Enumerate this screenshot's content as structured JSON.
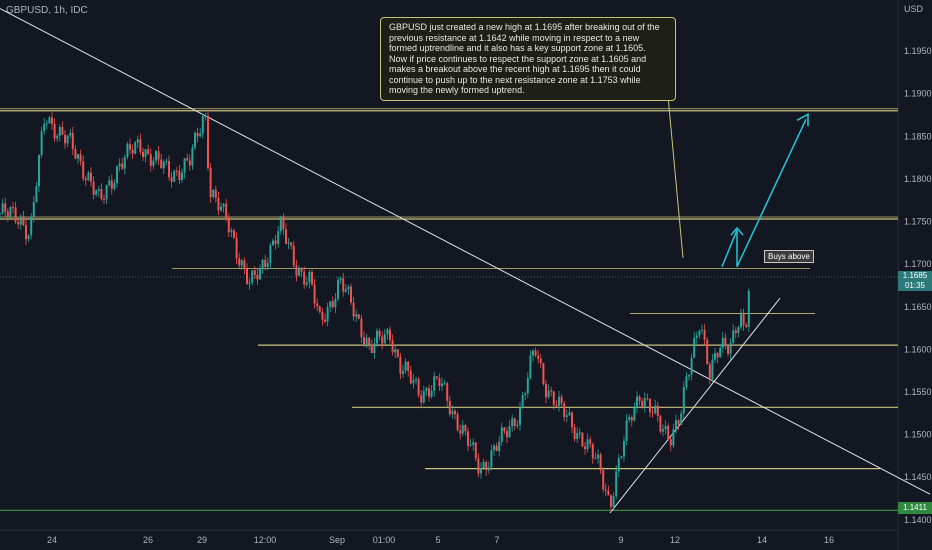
{
  "header": {
    "symbol": "GBPUSD, 1h, IDC",
    "currency": "USD"
  },
  "annotation": {
    "line1": "GBPUSD just created a new high at 1.1695 after breaking out of the previous resistance at 1.1642 while moving in respect to a new formed uptrendline and it also has a key support zone at 1.1605.",
    "line2": "Now if price continues to respect the support zone at 1.1605 and makes a breakout above the recent high at 1.1695 then it could continue to push up to the next resistance zone at 1.1753 while moving the newly formed uptrend."
  },
  "buys_label": "Buys above",
  "price_tag": {
    "price": "1.1685",
    "countdown": "01:35"
  },
  "low_tag": "1.1411",
  "colors": {
    "background": "#131722",
    "up": "#26a69a",
    "down": "#ef5350",
    "level_line": "#c9c279",
    "trendline": "#e0e3eb",
    "projection_arrow": "#26c6da",
    "axis_text": "#b2b5be"
  },
  "chart_data": {
    "type": "candlestick",
    "title": "GBPUSD, 1h, IDC",
    "ylabel": "USD",
    "ylim": [
      1.1388,
      1.201
    ],
    "y_ticks": [
      "1.1950",
      "1.1900",
      "1.1850",
      "1.1800",
      "1.1750",
      "1.1700",
      "1.1650",
      "1.1600",
      "1.1550",
      "1.1500",
      "1.1450",
      "1.1400"
    ],
    "x_ticks": [
      "24",
      "26",
      "29",
      "12:00",
      "Sep",
      "01:00",
      "5",
      "7",
      "9",
      "12",
      "14",
      "16"
    ],
    "price_path": [
      [
        0,
        1.176
      ],
      [
        0.02,
        1.1755
      ],
      [
        0.03,
        1.1735
      ],
      [
        0.045,
        1.1875
      ],
      [
        0.07,
        1.184
      ],
      [
        0.09,
        1.18
      ],
      [
        0.1,
        1.177
      ],
      [
        0.12,
        1.182
      ],
      [
        0.14,
        1.184
      ],
      [
        0.17,
        1.1805
      ],
      [
        0.19,
        1.182
      ],
      [
        0.2,
        1.186
      ],
      [
        0.205,
        1.188
      ],
      [
        0.21,
        1.179
      ],
      [
        0.23,
        1.174
      ],
      [
        0.25,
        1.1675
      ],
      [
        0.26,
        1.169
      ],
      [
        0.27,
        1.172
      ],
      [
        0.28,
        1.1745
      ],
      [
        0.295,
        1.17
      ],
      [
        0.31,
        1.168
      ],
      [
        0.32,
        1.163
      ],
      [
        0.34,
        1.168
      ],
      [
        0.36,
        1.163
      ],
      [
        0.37,
        1.16
      ],
      [
        0.39,
        1.162
      ],
      [
        0.4,
        1.158
      ],
      [
        0.42,
        1.155
      ],
      [
        0.44,
        1.156
      ],
      [
        0.46,
        1.151
      ],
      [
        0.48,
        1.146
      ],
      [
        0.5,
        1.149
      ],
      [
        0.52,
        1.153
      ],
      [
        0.535,
        1.16
      ],
      [
        0.545,
        1.156
      ],
      [
        0.56,
        1.153
      ],
      [
        0.58,
        1.15
      ],
      [
        0.6,
        1.146
      ],
      [
        0.61,
        1.142
      ],
      [
        0.62,
        1.147
      ],
      [
        0.63,
        1.152
      ],
      [
        0.64,
        1.155
      ],
      [
        0.66,
        1.151
      ],
      [
        0.67,
        1.15
      ],
      [
        0.68,
        1.152
      ],
      [
        0.69,
        1.158
      ],
      [
        0.7,
        1.164
      ],
      [
        0.71,
        1.157
      ],
      [
        0.72,
        1.16
      ],
      [
        0.73,
        1.161
      ],
      [
        0.74,
        1.164
      ],
      [
        0.745,
        1.161
      ],
      [
        0.75,
        1.1685
      ]
    ],
    "support_resistance_levels": [
      1.188,
      1.1753,
      1.1695,
      1.1642,
      1.1605,
      1.1532,
      1.146,
      1.1411
    ],
    "trendlines": [
      {
        "name": "downtrend",
        "from": [
          0.0,
          1.2
        ],
        "to": [
          0.93,
          1.143
        ]
      },
      {
        "name": "uptrend",
        "from": [
          0.61,
          1.1408
        ],
        "to": [
          0.78,
          1.166
        ]
      }
    ],
    "projection_path": [
      [
        0.775,
        1.1697
      ],
      [
        0.785,
        1.1708
      ],
      [
        0.795,
        1.1753
      ],
      [
        0.785,
        1.1753
      ],
      [
        0.795,
        1.1697
      ],
      [
        0.87,
        1.187
      ]
    ],
    "current_price": 1.1685,
    "low_price": 1.1411
  }
}
